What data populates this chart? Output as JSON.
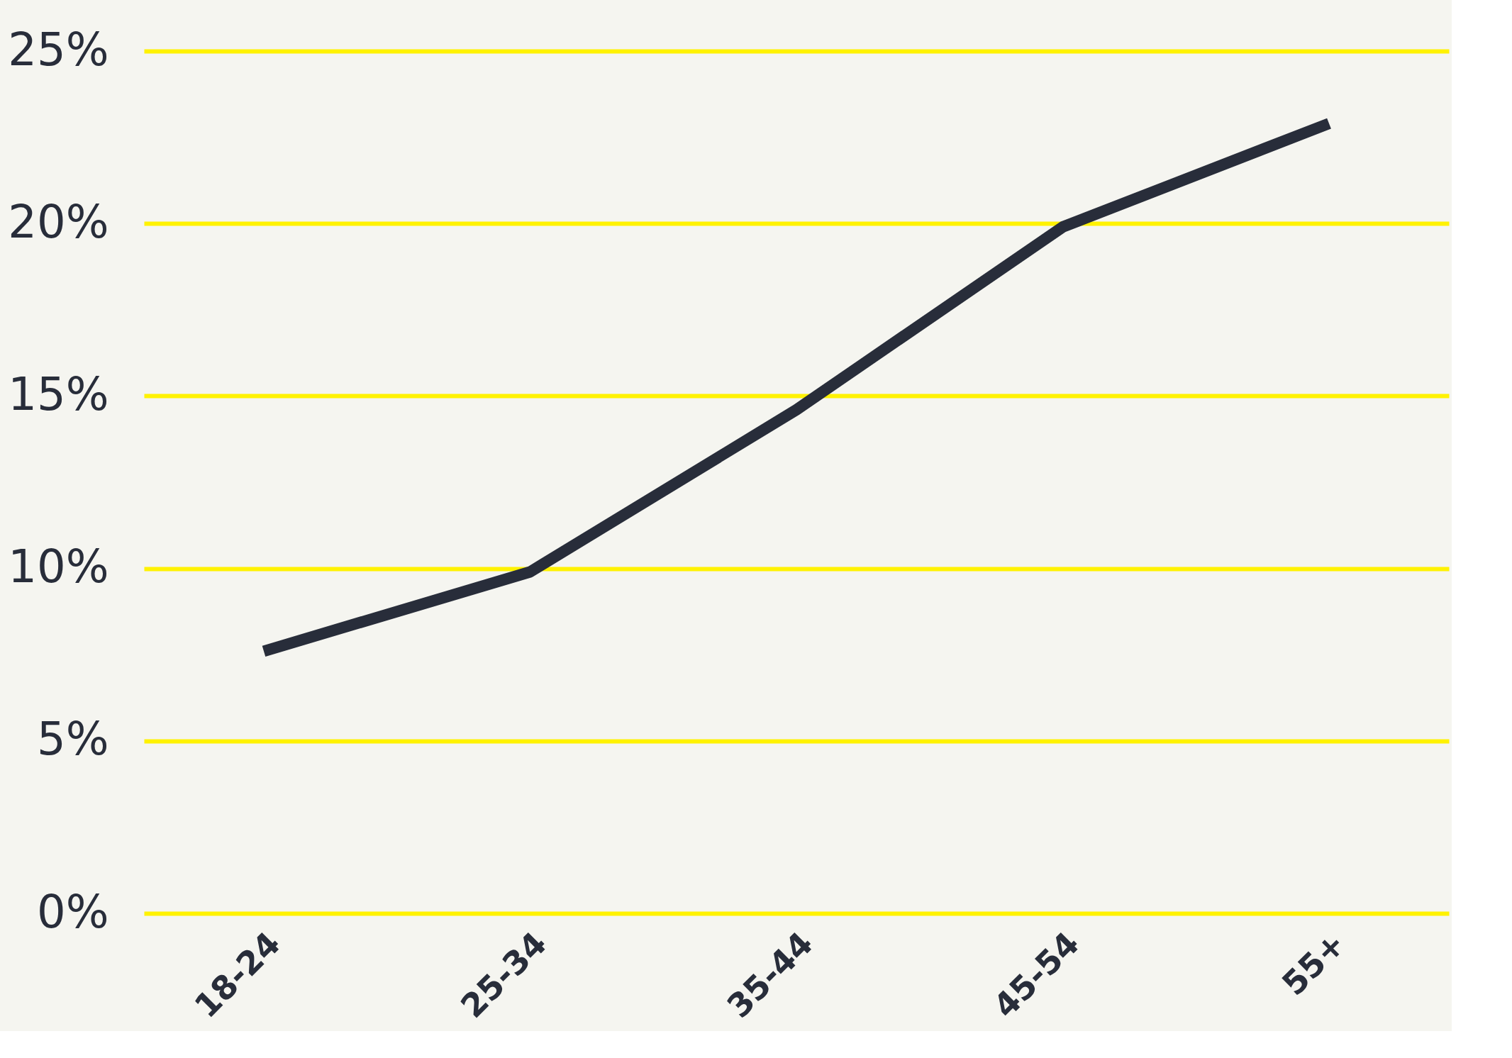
{
  "chart_data": {
    "type": "line",
    "categories": [
      "18-24",
      "25-34",
      "35-44",
      "45-54",
      "55+"
    ],
    "series": [
      {
        "color": "#282d3a",
        "values": [
          7.6,
          9.9,
          14.6,
          19.9,
          22.9
        ]
      }
    ],
    "ylim": [
      0,
      25
    ],
    "yticks": [
      {
        "value": 0,
        "label": "0%"
      },
      {
        "value": 5,
        "label": "5%"
      },
      {
        "value": 10,
        "label": "10%"
      },
      {
        "value": 15,
        "label": "15%"
      },
      {
        "value": 20,
        "label": "20%"
      },
      {
        "value": 25,
        "label": "25%"
      }
    ],
    "grid": "y",
    "line_style": "solid"
  }
}
